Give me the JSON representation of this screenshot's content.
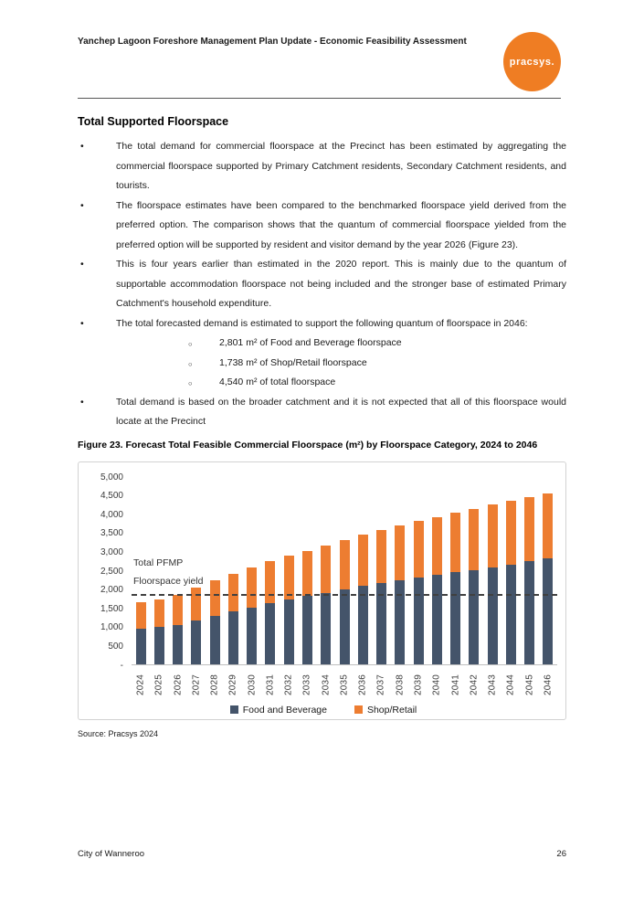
{
  "header": {
    "title": "Yanchep Lagoon Foreshore Management Plan Update - Economic Feasibility Assessment",
    "logo_text": "pracsys.",
    "logo_color": "#EF7D23"
  },
  "section": {
    "title": "Total Supported Floorspace",
    "bullets": [
      {
        "text": "The total demand for commercial floorspace at the Precinct has been estimated by aggregating the commercial floorspace supported by Primary Catchment residents, Secondary Catchment residents, and tourists."
      },
      {
        "text": "The floorspace estimates have been compared to the benchmarked floorspace yield derived from the preferred option. The comparison shows that the quantum of commercial floorspace yielded from the preferred option will be supported by resident and visitor demand by the year 2026 (Figure 23)."
      },
      {
        "text": "This is four years earlier than estimated in the 2020 report. This is mainly due to the quantum of supportable accommodation floorspace not being included and the stronger base of estimated Primary Catchment's household expenditure."
      },
      {
        "text": "The total forecasted demand is estimated to support the following quantum of floorspace in 2046:",
        "sub": [
          "2,801 m² of Food and Beverage floorspace",
          "1,738 m² of Shop/Retail floorspace",
          "4,540 m² of total floorspace"
        ]
      },
      {
        "text": "Total demand is based on the broader catchment and it is not expected that all of this floorspace would locate at the Precinct"
      }
    ]
  },
  "figure": {
    "caption": "Figure 23. Forecast Total Feasible Commercial Floorspace (m²) by Floorspace Category, 2024 to 2046",
    "source": "Source: Pracsys 2024"
  },
  "chart_data": {
    "type": "bar",
    "stacked": true,
    "title": "Forecast Total Feasible Commercial Floorspace (m²) by Floorspace Category, 2024 to 2046",
    "categories": [
      "2024",
      "2025",
      "2026",
      "2027",
      "2028",
      "2029",
      "2030",
      "2031",
      "2032",
      "2033",
      "2034",
      "2035",
      "2036",
      "2037",
      "2038",
      "2039",
      "2040",
      "2041",
      "2042",
      "2043",
      "2044",
      "2045",
      "2046"
    ],
    "series": [
      {
        "name": "Food and Beverage",
        "color": "#44546A",
        "values": [
          930,
          980,
          1040,
          1150,
          1270,
          1390,
          1490,
          1610,
          1700,
          1800,
          1890,
          1990,
          2070,
          2140,
          2210,
          2290,
          2360,
          2430,
          2500,
          2570,
          2640,
          2720,
          2801
        ]
      },
      {
        "name": "Shop/Retail",
        "color": "#ED7D31",
        "values": [
          700,
          740,
          800,
          880,
          940,
          990,
          1060,
          1110,
          1170,
          1210,
          1260,
          1310,
          1360,
          1410,
          1460,
          1500,
          1540,
          1580,
          1620,
          1660,
          1700,
          1720,
          1738
        ]
      }
    ],
    "ylim": [
      0,
      5000
    ],
    "y_ticks": [
      {
        "value": 5000,
        "label": "5,000"
      },
      {
        "value": 4500,
        "label": "4,500"
      },
      {
        "value": 4000,
        "label": "4,000"
      },
      {
        "value": 3500,
        "label": "3,500"
      },
      {
        "value": 3000,
        "label": "3,000"
      },
      {
        "value": 2500,
        "label": "2,500"
      },
      {
        "value": 2000,
        "label": "2,000"
      },
      {
        "value": 1500,
        "label": "1,500"
      },
      {
        "value": 1000,
        "label": "1,000"
      },
      {
        "value": 500,
        "label": "500"
      },
      {
        "value": 0,
        "label": "-"
      }
    ],
    "reference_line": {
      "value": 1800,
      "label_line1": "Total PFMP",
      "label_line2": "Floorspace yield"
    },
    "legend_position": "bottom",
    "grid": false
  },
  "footer": {
    "left": "City of Wanneroo",
    "page_number": "26"
  }
}
